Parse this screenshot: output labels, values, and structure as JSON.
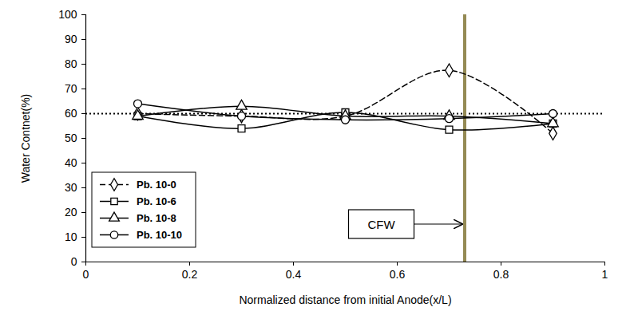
{
  "chart_data": {
    "type": "line",
    "x_label": "Normalized distance from initial Anode(x/L)",
    "y_label": "Water Contnet(%)",
    "x": [
      0.1,
      0.3,
      0.5,
      0.7,
      0.9
    ],
    "series": [
      {
        "name": "Pb. 10-0",
        "color": "#000000",
        "marker": "diamond",
        "line_style": "dashed",
        "values": [
          60,
          59,
          59,
          77.5,
          52
        ]
      },
      {
        "name": "Pb. 10-6",
        "color": "#000000",
        "marker": "square",
        "line_style": "solid",
        "values": [
          59,
          54,
          60.5,
          53.5,
          56
        ]
      },
      {
        "name": "Pb. 10-8",
        "color": "#000000",
        "marker": "triangle",
        "line_style": "solid",
        "values": [
          59,
          63,
          59,
          59,
          56
        ]
      },
      {
        "name": "Pb. 10-10",
        "color": "#000000",
        "marker": "circle",
        "line_style": "solid",
        "values": [
          64,
          59,
          57.5,
          58,
          60
        ]
      }
    ],
    "reference_line": {
      "y": 60,
      "line_style": "dotted",
      "color": "#000000"
    },
    "annotation": {
      "text": "CFW",
      "x": 0.73,
      "color": "#948a54"
    },
    "xlim": [
      0,
      1
    ],
    "xticks": [
      0,
      0.2,
      0.4,
      0.6,
      0.8,
      1
    ],
    "ylim": [
      0,
      100
    ],
    "yticks": [
      0,
      10,
      20,
      30,
      40,
      50,
      60,
      70,
      80,
      90,
      100
    ],
    "grid": false,
    "legend": "lower left"
  }
}
